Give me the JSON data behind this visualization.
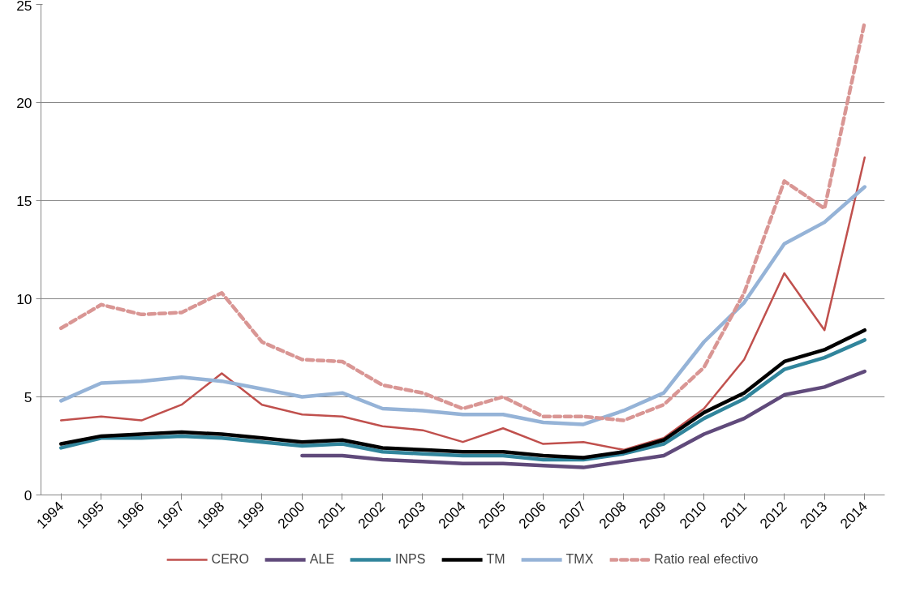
{
  "chart_data": {
    "type": "line",
    "categories": [
      "1994",
      "1995",
      "1996",
      "1997",
      "1998",
      "1999",
      "2000",
      "2001",
      "2002",
      "2003",
      "2004",
      "2005",
      "2006",
      "2007",
      "2008",
      "2009",
      "2010",
      "2011",
      "2012",
      "2013",
      "2014"
    ],
    "ylim": [
      0,
      25
    ],
    "yticks": [
      0,
      5,
      10,
      15,
      20,
      25
    ],
    "grid": "y",
    "legend": "bottom",
    "line_style": "solid",
    "series": [
      {
        "name": "CERO",
        "color": "#c0504d",
        "values": [
          3.8,
          4.0,
          3.8,
          4.6,
          6.2,
          4.6,
          4.1,
          4.0,
          3.5,
          3.3,
          2.7,
          3.4,
          2.6,
          2.7,
          2.3,
          2.9,
          4.4,
          6.9,
          11.3,
          8.4,
          17.2
        ]
      },
      {
        "name": "ALE",
        "color": "#604a7b",
        "values": [
          null,
          null,
          null,
          null,
          null,
          null,
          2.0,
          2.0,
          1.8,
          1.7,
          1.6,
          1.6,
          1.5,
          1.4,
          1.7,
          2.0,
          3.1,
          3.9,
          5.1,
          5.5,
          6.3
        ]
      },
      {
        "name": "INPS",
        "color": "#31859c",
        "values": [
          2.4,
          2.9,
          2.9,
          3.0,
          2.9,
          2.7,
          2.5,
          2.6,
          2.2,
          2.1,
          2.0,
          2.0,
          1.8,
          1.8,
          2.1,
          2.6,
          3.9,
          4.9,
          6.4,
          7.0,
          7.9
        ]
      },
      {
        "name": "TM",
        "color": "#000000",
        "values": [
          2.6,
          3.0,
          3.1,
          3.2,
          3.1,
          2.9,
          2.7,
          2.8,
          2.4,
          2.3,
          2.2,
          2.2,
          2.0,
          1.9,
          2.2,
          2.8,
          4.2,
          5.2,
          6.8,
          7.4,
          8.4
        ]
      },
      {
        "name": "TMX",
        "color": "#95b3d7",
        "values": [
          4.8,
          5.7,
          5.8,
          6.0,
          5.8,
          5.4,
          5.0,
          5.2,
          4.4,
          4.3,
          4.1,
          4.1,
          3.7,
          3.6,
          4.3,
          5.2,
          7.8,
          9.8,
          12.8,
          13.9,
          15.7
        ]
      },
      {
        "name": "Ratio real efectivo",
        "color": "#d99694",
        "line_style": "dashed",
        "values": [
          8.5,
          9.7,
          9.2,
          9.3,
          10.3,
          7.8,
          6.9,
          6.8,
          5.6,
          5.2,
          4.4,
          5.0,
          4.0,
          4.0,
          3.8,
          4.6,
          6.5,
          10.3,
          16.0,
          14.6,
          24.1
        ]
      }
    ]
  }
}
